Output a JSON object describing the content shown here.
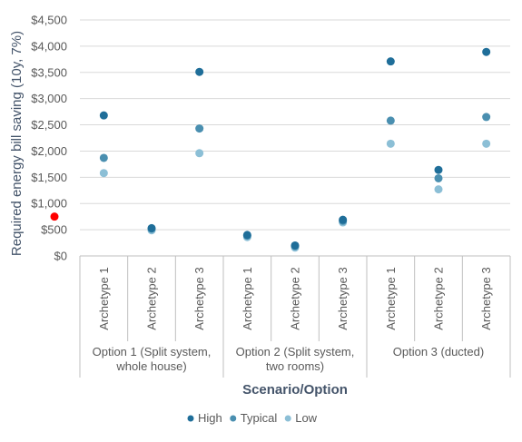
{
  "chart_data": {
    "type": "scatter",
    "ylabel": "Required energy bill saving (10y, 7%)",
    "xlabel": "Scenario/Option",
    "ylim": [
      0,
      4500
    ],
    "yticks": [
      0,
      500,
      1000,
      1500,
      2000,
      2500,
      3000,
      3500,
      4000,
      4500
    ],
    "ytick_labels": [
      "$0",
      "$500",
      "$1,000",
      "$1,500",
      "$2,000",
      "$2,500",
      "$3,000",
      "$3,500",
      "$4,000",
      "$4,500"
    ],
    "grid": true,
    "legend_position": "bottom",
    "groups": [
      {
        "label": "Option 1 (Split system, whole house)",
        "label_lines": [
          "Option 1 (Split system,",
          "whole house)"
        ],
        "categories": [
          "Archetype 1",
          "Archetype 2",
          "Archetype 3"
        ]
      },
      {
        "label": "Option 2 (Split system, two rooms)",
        "label_lines": [
          "Option 2 (Split system,",
          "two rooms)"
        ],
        "categories": [
          "Archetype 1",
          "Archetype 2",
          "Archetype 3"
        ]
      },
      {
        "label": "Option 3 (ducted)",
        "label_lines": [
          "Option 3 (ducted)"
        ],
        "categories": [
          "Archetype 1",
          "Archetype 2",
          "Archetype 3"
        ]
      }
    ],
    "series": [
      {
        "name": "High",
        "color": "#1F6E99",
        "values": [
          2680,
          530,
          3510,
          400,
          200,
          690,
          3710,
          1640,
          3890
        ]
      },
      {
        "name": "Typical",
        "color": "#4A8FB0",
        "values": [
          1870,
          520,
          2430,
          390,
          190,
          670,
          2580,
          1480,
          2650
        ]
      },
      {
        "name": "Low",
        "color": "#8CBFD6",
        "values": [
          1580,
          490,
          1960,
          360,
          160,
          640,
          2140,
          1270,
          2140
        ]
      }
    ],
    "reference_point": {
      "value": 750,
      "color": "#FF0000"
    }
  }
}
